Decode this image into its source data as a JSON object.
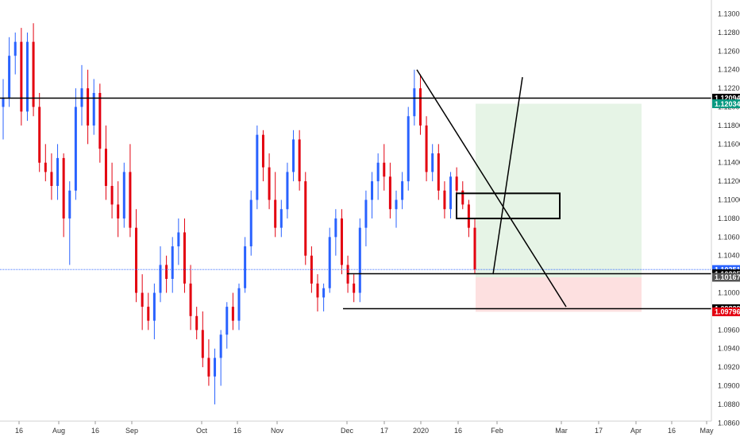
{
  "chart_data": {
    "type": "candlestick",
    "title": "",
    "xlabel": "",
    "ylabel": "",
    "ylim": [
      1.0862,
      1.1315
    ],
    "y_ticks": [
      "1.13000",
      "1.12800",
      "1.12600",
      "1.12400",
      "1.12200",
      "1.12000",
      "1.11800",
      "1.11600",
      "1.11400",
      "1.11200",
      "1.11000",
      "1.10800",
      "1.10600",
      "1.10400",
      "1.10200",
      "1.10000",
      "1.09800",
      "1.09600",
      "1.09400",
      "1.09200",
      "1.09000",
      "1.08800",
      "1.08600"
    ],
    "x_ticks": [
      "16",
      "Aug",
      "16",
      "Sep",
      "Oct",
      "16",
      "Nov",
      "Dec",
      "17",
      "2020",
      "16",
      "Feb",
      "Mar",
      "17",
      "Apr",
      "16",
      "May"
    ],
    "horizontal_levels": [
      {
        "price": 1.12094,
        "label": "1.12094"
      },
      {
        "price": 1.10205,
        "label": "1.10205"
      },
      {
        "price": 1.09829,
        "label": "1.09829"
      }
    ],
    "price_tags": [
      {
        "price": 1.12094,
        "label": "1.12094",
        "color": "#000000"
      },
      {
        "price": 1.12034,
        "label": "1.12034",
        "color": "#089981"
      },
      {
        "price": 1.10251,
        "label": "1.10251",
        "color": "#2962ff"
      },
      {
        "price": 1.10205,
        "label": "1.10205",
        "color": "#000000"
      },
      {
        "price": 1.10167,
        "label": "1.10167",
        "color": "#555555"
      },
      {
        "price": 1.09829,
        "label": "1.09829",
        "color": "#000000"
      },
      {
        "price": 1.09796,
        "label": "1.09796",
        "color": "#e3000f"
      }
    ],
    "position": {
      "entry": 1.10167,
      "target": 1.12034,
      "stop": 1.09796,
      "profit_color": "#e6f4e6",
      "loss_color": "#fde0e0"
    },
    "series": [
      {
        "values": [
          [
            1.12,
            1.123,
            1.1165,
            1.121
          ],
          [
            1.121,
            1.1275,
            1.12,
            1.1255
          ],
          [
            1.1255,
            1.128,
            1.1235,
            1.127
          ],
          [
            1.127,
            1.1285,
            1.118,
            1.1195
          ],
          [
            1.1195,
            1.128,
            1.1185,
            1.127
          ],
          [
            1.127,
            1.129,
            1.119,
            1.12
          ],
          [
            1.12,
            1.1215,
            1.113,
            1.114
          ],
          [
            1.114,
            1.116,
            1.112,
            1.113
          ],
          [
            1.113,
            1.115,
            1.11,
            1.1115
          ],
          [
            1.1115,
            1.116,
            1.11,
            1.1145
          ],
          [
            1.1145,
            1.115,
            1.106,
            1.108
          ],
          [
            1.108,
            1.112,
            1.103,
            1.111
          ],
          [
            1.111,
            1.122,
            1.11,
            1.12
          ],
          [
            1.12,
            1.1245,
            1.118,
            1.122
          ],
          [
            1.122,
            1.124,
            1.116,
            1.118
          ],
          [
            1.118,
            1.123,
            1.117,
            1.1215
          ],
          [
            1.1215,
            1.1225,
            1.114,
            1.1155
          ],
          [
            1.1155,
            1.118,
            1.11,
            1.1115
          ],
          [
            1.1115,
            1.114,
            1.108,
            1.1095
          ],
          [
            1.1095,
            1.112,
            1.106,
            1.108
          ],
          [
            1.108,
            1.114,
            1.107,
            1.113
          ],
          [
            1.113,
            1.116,
            1.106,
            1.107
          ],
          [
            1.107,
            1.109,
            1.099,
            1.1
          ],
          [
            1.1,
            1.102,
            1.096,
            1.0985
          ],
          [
            1.0985,
            1.1,
            1.096,
            1.097
          ],
          [
            1.097,
            1.101,
            1.095,
            1.1
          ],
          [
            1.1,
            1.105,
            1.099,
            1.103
          ],
          [
            1.103,
            1.104,
            1.1,
            1.1015
          ],
          [
            1.1015,
            1.106,
            1.1,
            1.105
          ],
          [
            1.105,
            1.108,
            1.103,
            1.1065
          ],
          [
            1.1065,
            1.108,
            1.1,
            1.101
          ],
          [
            1.101,
            1.103,
            1.096,
            1.0975
          ],
          [
            1.0975,
            1.0985,
            1.095,
            1.096
          ],
          [
            1.096,
            1.098,
            1.092,
            1.093
          ],
          [
            1.093,
            1.095,
            1.09,
            1.091
          ],
          [
            1.091,
            1.094,
            1.088,
            1.093
          ],
          [
            1.093,
            1.096,
            1.09,
            1.0955
          ],
          [
            1.0955,
            1.099,
            1.094,
            1.0985
          ],
          [
            1.0985,
            1.1,
            1.096,
            1.097
          ],
          [
            1.097,
            1.101,
            1.096,
            1.1005
          ],
          [
            1.1005,
            1.106,
            1.1,
            1.105
          ],
          [
            1.105,
            1.111,
            1.104,
            1.11
          ],
          [
            1.11,
            1.118,
            1.109,
            1.117
          ],
          [
            1.117,
            1.1175,
            1.112,
            1.1135
          ],
          [
            1.1135,
            1.115,
            1.109,
            1.11
          ],
          [
            1.11,
            1.113,
            1.106,
            1.107
          ],
          [
            1.107,
            1.11,
            1.106,
            1.109
          ],
          [
            1.109,
            1.114,
            1.108,
            1.113
          ],
          [
            1.113,
            1.1175,
            1.112,
            1.1165
          ],
          [
            1.1165,
            1.1175,
            1.111,
            1.112
          ],
          [
            1.112,
            1.113,
            1.103,
            1.104
          ],
          [
            1.104,
            1.105,
            1.1,
            1.101
          ],
          [
            1.101,
            1.102,
            1.098,
            1.0995
          ],
          [
            1.0995,
            1.101,
            1.098,
            1.1005
          ],
          [
            1.1005,
            1.107,
            1.1,
            1.106
          ],
          [
            1.106,
            1.109,
            1.104,
            1.108
          ],
          [
            1.108,
            1.109,
            1.102,
            1.103
          ],
          [
            1.103,
            1.104,
            1.1,
            1.101
          ],
          [
            1.101,
            1.102,
            1.099,
            1.1
          ],
          [
            1.1,
            1.108,
            1.099,
            1.107
          ],
          [
            1.107,
            1.111,
            1.105,
            1.11
          ],
          [
            1.11,
            1.113,
            1.108,
            1.112
          ],
          [
            1.112,
            1.115,
            1.11,
            1.114
          ],
          [
            1.114,
            1.116,
            1.111,
            1.1125
          ],
          [
            1.1125,
            1.114,
            1.108,
            1.109
          ],
          [
            1.109,
            1.111,
            1.107,
            1.11
          ],
          [
            1.11,
            1.113,
            1.109,
            1.112
          ],
          [
            1.112,
            1.12,
            1.111,
            1.119
          ],
          [
            1.119,
            1.124,
            1.118,
            1.122
          ],
          [
            1.122,
            1.1235,
            1.117,
            1.118
          ],
          [
            1.118,
            1.119,
            1.112,
            1.113
          ],
          [
            1.113,
            1.116,
            1.112,
            1.115
          ],
          [
            1.115,
            1.116,
            1.11,
            1.111
          ],
          [
            1.111,
            1.112,
            1.108,
            1.109
          ],
          [
            1.109,
            1.113,
            1.108,
            1.1125
          ],
          [
            1.1125,
            1.1135,
            1.11,
            1.111
          ],
          [
            1.111,
            1.112,
            1.109,
            1.1095
          ],
          [
            1.1095,
            1.11,
            1.106,
            1.107
          ],
          [
            1.107,
            1.108,
            1.102,
            1.1025
          ]
        ]
      }
    ]
  }
}
